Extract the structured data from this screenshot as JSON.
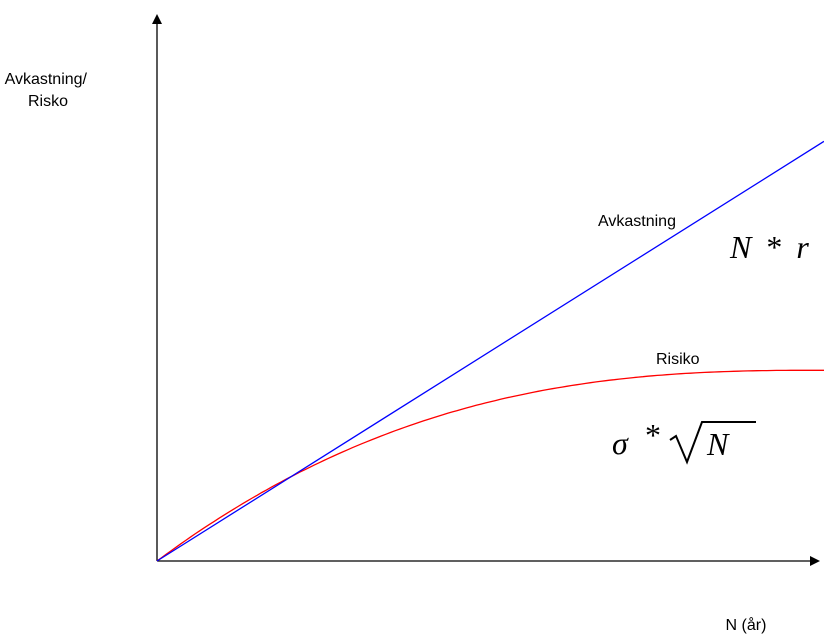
{
  "chart_data": {
    "type": "line",
    "title": "",
    "ylabel_lines": [
      "Avkastning/",
      "Risko"
    ],
    "xlabel": "N (år)",
    "grid": false,
    "axis_ticks": false,
    "series": [
      {
        "name": "Avkastning",
        "formula": "N * r",
        "shape": "linear",
        "color": "#0000ff",
        "relative_end_value": 0.77
      },
      {
        "name": "Risiko",
        "formula": "σ * √N",
        "shape": "square-root-like",
        "color": "#ff0000",
        "relative_plateau_value": 0.35
      }
    ],
    "intersection": "Avkastning and Risiko curves cross once between origin and right end"
  },
  "formulas": {
    "return": {
      "N": "N",
      "star": "*",
      "r": "r"
    },
    "risk": {
      "sigma": "σ",
      "star": "*",
      "N": "N"
    }
  },
  "colors": {
    "axis": "#000000",
    "return_line": "#0000ff",
    "risk_line": "#ff0000"
  }
}
